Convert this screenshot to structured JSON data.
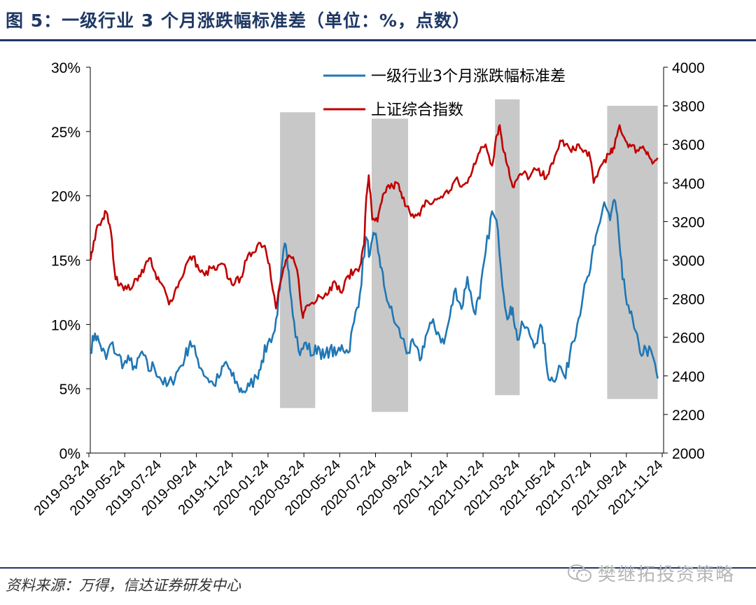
{
  "title": "图 5：一级行业 3 个月涨跌幅标准差（单位：%，点数）",
  "source": "资料来源：万得，信达证券研发中心",
  "watermark": "樊继拓投资策略",
  "colors": {
    "std": "#1f77b4",
    "index": "#c00000",
    "shade": "#c8c8c8",
    "brand": "#1f3864"
  },
  "chart_data": {
    "type": "line",
    "left_axis": {
      "min": 0,
      "max": 30,
      "ticks": [
        "0%",
        "5%",
        "10%",
        "15%",
        "20%",
        "25%",
        "30%"
      ]
    },
    "right_axis": {
      "min": 2000,
      "max": 4000,
      "ticks": [
        "2000",
        "2200",
        "2400",
        "2600",
        "2800",
        "3000",
        "3200",
        "3400",
        "3600",
        "3800",
        "4000"
      ]
    },
    "x_ticks": [
      "2019-03-24",
      "2019-05-24",
      "2019-07-24",
      "2019-09-24",
      "2019-11-24",
      "2020-01-24",
      "2020-03-24",
      "2020-05-24",
      "2020-07-24",
      "2020-09-24",
      "2020-11-24",
      "2021-01-24",
      "2021-03-24",
      "2021-05-24",
      "2021-07-24",
      "2021-09-24",
      "2021-11-24"
    ],
    "x_range": [
      "2019-03-24",
      "2021-11-24"
    ],
    "shaded_periods": [
      {
        "start": "2020-02-10",
        "end": "2020-04-10",
        "ylow": 3.5,
        "yhigh": 26.5
      },
      {
        "start": "2020-07-15",
        "end": "2020-09-15",
        "ylow": 3.2,
        "yhigh": 26.0
      },
      {
        "start": "2021-02-10",
        "end": "2021-03-24",
        "ylow": 4.5,
        "yhigh": 27.5
      },
      {
        "start": "2021-08-20",
        "end": "2021-11-14",
        "ylow": 4.2,
        "yhigh": 27.0
      }
    ],
    "series": [
      {
        "name": "一级行业3个月涨跌幅标准差",
        "axis": "left",
        "points": [
          [
            "2019-03-24",
            8.0
          ],
          [
            "2019-04-01",
            9.3
          ],
          [
            "2019-04-10",
            8.4
          ],
          [
            "2019-04-20",
            7.3
          ],
          [
            "2019-04-28",
            8.5
          ],
          [
            "2019-05-10",
            7.6
          ],
          [
            "2019-05-20",
            6.9
          ],
          [
            "2019-05-30",
            7.2
          ],
          [
            "2019-06-10",
            6.6
          ],
          [
            "2019-06-20",
            7.9
          ],
          [
            "2019-07-01",
            6.4
          ],
          [
            "2019-07-10",
            6.8
          ],
          [
            "2019-07-20",
            5.9
          ],
          [
            "2019-08-01",
            5.2
          ],
          [
            "2019-08-10",
            5.6
          ],
          [
            "2019-08-20",
            6.4
          ],
          [
            "2019-09-01",
            7.4
          ],
          [
            "2019-09-10",
            8.7
          ],
          [
            "2019-09-20",
            7.6
          ],
          [
            "2019-10-01",
            6.4
          ],
          [
            "2019-10-10",
            5.8
          ],
          [
            "2019-10-20",
            5.3
          ],
          [
            "2019-11-01",
            6.1
          ],
          [
            "2019-11-10",
            7.1
          ],
          [
            "2019-11-20",
            6.0
          ],
          [
            "2019-12-01",
            5.1
          ],
          [
            "2019-12-10",
            4.8
          ],
          [
            "2019-12-20",
            5.2
          ],
          [
            "2020-01-01",
            5.9
          ],
          [
            "2020-01-10",
            7.2
          ],
          [
            "2020-01-20",
            8.5
          ],
          [
            "2020-02-01",
            9.5
          ],
          [
            "2020-02-10",
            12.8
          ],
          [
            "2020-02-18",
            16.3
          ],
          [
            "2020-02-25",
            14.1
          ],
          [
            "2020-03-05",
            10.2
          ],
          [
            "2020-03-15",
            7.6
          ],
          [
            "2020-03-25",
            8.6
          ],
          [
            "2020-04-05",
            7.6
          ],
          [
            "2020-04-15",
            8.3
          ],
          [
            "2020-04-25",
            7.4
          ],
          [
            "2020-05-05",
            8.1
          ],
          [
            "2020-05-15",
            7.6
          ],
          [
            "2020-05-25",
            8.4
          ],
          [
            "2020-06-05",
            7.8
          ],
          [
            "2020-06-15",
            10.2
          ],
          [
            "2020-06-25",
            12.4
          ],
          [
            "2020-07-05",
            16.8
          ],
          [
            "2020-07-12",
            15.4
          ],
          [
            "2020-07-20",
            17.0
          ],
          [
            "2020-07-28",
            15.3
          ],
          [
            "2020-08-05",
            13.0
          ],
          [
            "2020-08-15",
            11.3
          ],
          [
            "2020-08-25",
            10.0
          ],
          [
            "2020-09-05",
            8.9
          ],
          [
            "2020-09-15",
            7.8
          ],
          [
            "2020-09-25",
            8.5
          ],
          [
            "2020-10-05",
            7.2
          ],
          [
            "2020-10-15",
            9.1
          ],
          [
            "2020-10-25",
            10.1
          ],
          [
            "2020-11-05",
            9.4
          ],
          [
            "2020-11-15",
            8.5
          ],
          [
            "2020-11-25",
            10.6
          ],
          [
            "2020-12-05",
            12.8
          ],
          [
            "2020-12-15",
            11.2
          ],
          [
            "2020-12-25",
            13.7
          ],
          [
            "2021-01-05",
            11.0
          ],
          [
            "2021-01-15",
            12.0
          ],
          [
            "2021-01-25",
            15.6
          ],
          [
            "2021-02-05",
            18.8
          ],
          [
            "2021-02-15",
            17.3
          ],
          [
            "2021-02-25",
            12.2
          ],
          [
            "2021-03-05",
            10.5
          ],
          [
            "2021-03-12",
            11.3
          ],
          [
            "2021-03-20",
            8.8
          ],
          [
            "2021-03-30",
            10.0
          ],
          [
            "2021-04-10",
            9.2
          ],
          [
            "2021-04-20",
            8.5
          ],
          [
            "2021-05-01",
            9.8
          ],
          [
            "2021-05-10",
            6.3
          ],
          [
            "2021-05-20",
            5.6
          ],
          [
            "2021-05-30",
            6.8
          ],
          [
            "2021-06-10",
            5.8
          ],
          [
            "2021-06-20",
            8.5
          ],
          [
            "2021-06-30",
            10.0
          ],
          [
            "2021-07-10",
            12.3
          ],
          [
            "2021-07-20",
            13.8
          ],
          [
            "2021-07-30",
            16.2
          ],
          [
            "2021-08-05",
            17.6
          ],
          [
            "2021-08-15",
            19.5
          ],
          [
            "2021-08-25",
            18.1
          ],
          [
            "2021-09-01",
            19.7
          ],
          [
            "2021-09-08",
            17.4
          ],
          [
            "2021-09-15",
            13.5
          ],
          [
            "2021-09-25",
            11.5
          ],
          [
            "2021-10-05",
            9.7
          ],
          [
            "2021-10-15",
            7.8
          ],
          [
            "2021-10-25",
            8.1
          ],
          [
            "2021-11-05",
            7.6
          ],
          [
            "2021-11-14",
            5.8
          ]
        ]
      },
      {
        "name": "上证综合指数",
        "axis": "right",
        "points": [
          [
            "2019-03-24",
            3000
          ],
          [
            "2019-03-28",
            3050
          ],
          [
            "2019-04-05",
            3180
          ],
          [
            "2019-04-12",
            3200
          ],
          [
            "2019-04-20",
            3250
          ],
          [
            "2019-04-28",
            3150
          ],
          [
            "2019-05-06",
            2900
          ],
          [
            "2019-05-15",
            2880
          ],
          [
            "2019-05-25",
            2850
          ],
          [
            "2019-06-05",
            2870
          ],
          [
            "2019-06-15",
            2920
          ],
          [
            "2019-06-25",
            2970
          ],
          [
            "2019-07-05",
            3010
          ],
          [
            "2019-07-15",
            2900
          ],
          [
            "2019-07-25",
            2870
          ],
          [
            "2019-08-05",
            2770
          ],
          [
            "2019-08-15",
            2840
          ],
          [
            "2019-08-25",
            2900
          ],
          [
            "2019-09-05",
            2990
          ],
          [
            "2019-09-15",
            3020
          ],
          [
            "2019-09-25",
            2950
          ],
          [
            "2019-10-05",
            2920
          ],
          [
            "2019-10-15",
            2960
          ],
          [
            "2019-10-25",
            2950
          ],
          [
            "2019-11-05",
            2980
          ],
          [
            "2019-11-15",
            2900
          ],
          [
            "2019-11-25",
            2880
          ],
          [
            "2019-12-05",
            2910
          ],
          [
            "2019-12-15",
            3000
          ],
          [
            "2019-12-25",
            3040
          ],
          [
            "2020-01-05",
            3090
          ],
          [
            "2020-01-15",
            3075
          ],
          [
            "2020-01-23",
            2980
          ],
          [
            "2020-02-03",
            2750
          ],
          [
            "2020-02-12",
            2900
          ],
          [
            "2020-02-20",
            3000
          ],
          [
            "2020-03-01",
            3010
          ],
          [
            "2020-03-10",
            2950
          ],
          [
            "2020-03-20",
            2700
          ],
          [
            "2020-03-25",
            2760
          ],
          [
            "2020-04-05",
            2780
          ],
          [
            "2020-04-15",
            2820
          ],
          [
            "2020-04-25",
            2810
          ],
          [
            "2020-05-05",
            2860
          ],
          [
            "2020-05-15",
            2880
          ],
          [
            "2020-05-25",
            2830
          ],
          [
            "2020-06-05",
            2920
          ],
          [
            "2020-06-15",
            2940
          ],
          [
            "2020-06-25",
            2970
          ],
          [
            "2020-07-02",
            3080
          ],
          [
            "2020-07-06",
            3330
          ],
          [
            "2020-07-10",
            3440
          ],
          [
            "2020-07-16",
            3210
          ],
          [
            "2020-07-25",
            3200
          ],
          [
            "2020-08-01",
            3300
          ],
          [
            "2020-08-10",
            3380
          ],
          [
            "2020-08-20",
            3380
          ],
          [
            "2020-08-28",
            3400
          ],
          [
            "2020-09-05",
            3320
          ],
          [
            "2020-09-15",
            3280
          ],
          [
            "2020-09-25",
            3220
          ],
          [
            "2020-10-05",
            3230
          ],
          [
            "2020-10-15",
            3310
          ],
          [
            "2020-10-25",
            3290
          ],
          [
            "2020-11-05",
            3320
          ],
          [
            "2020-11-15",
            3340
          ],
          [
            "2020-11-25",
            3360
          ],
          [
            "2020-12-05",
            3420
          ],
          [
            "2020-12-15",
            3380
          ],
          [
            "2020-12-25",
            3400
          ],
          [
            "2021-01-05",
            3500
          ],
          [
            "2021-01-15",
            3560
          ],
          [
            "2021-01-25",
            3600
          ],
          [
            "2021-02-05",
            3490
          ],
          [
            "2021-02-12",
            3640
          ],
          [
            "2021-02-18",
            3700
          ],
          [
            "2021-02-25",
            3560
          ],
          [
            "2021-03-05",
            3480
          ],
          [
            "2021-03-12",
            3380
          ],
          [
            "2021-03-20",
            3420
          ],
          [
            "2021-03-30",
            3450
          ],
          [
            "2021-04-10",
            3430
          ],
          [
            "2021-04-20",
            3470
          ],
          [
            "2021-05-01",
            3440
          ],
          [
            "2021-05-10",
            3440
          ],
          [
            "2021-05-20",
            3500
          ],
          [
            "2021-06-01",
            3620
          ],
          [
            "2021-06-10",
            3600
          ],
          [
            "2021-06-20",
            3560
          ],
          [
            "2021-06-30",
            3600
          ],
          [
            "2021-07-10",
            3560
          ],
          [
            "2021-07-20",
            3560
          ],
          [
            "2021-07-28",
            3400
          ],
          [
            "2021-08-05",
            3460
          ],
          [
            "2021-08-15",
            3520
          ],
          [
            "2021-08-25",
            3550
          ],
          [
            "2021-09-01",
            3580
          ],
          [
            "2021-09-10",
            3700
          ],
          [
            "2021-09-20",
            3620
          ],
          [
            "2021-09-30",
            3590
          ],
          [
            "2021-10-10",
            3570
          ],
          [
            "2021-10-20",
            3590
          ],
          [
            "2021-10-28",
            3560
          ],
          [
            "2021-11-05",
            3500
          ],
          [
            "2021-11-14",
            3530
          ]
        ]
      }
    ]
  }
}
